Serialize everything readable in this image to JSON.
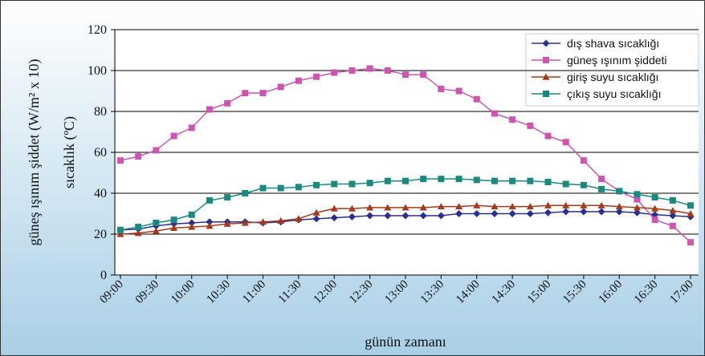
{
  "chart_data": {
    "type": "line",
    "ylabel_left": "güneş ışınım şiddet (W/m² x 10)",
    "ylabel_right": "sıcaklık (ºC)",
    "xlabel": "günün zamanı",
    "categories": [
      "09:00",
      null,
      "09:30",
      null,
      "10:00",
      null,
      "10:30",
      null,
      "11:00",
      null,
      "11:30",
      null,
      "12:00",
      null,
      "12:30",
      null,
      "13:00",
      null,
      "13:30",
      null,
      "14:00",
      null,
      "14:30",
      null,
      "15:00",
      null,
      "15:30",
      null,
      "16:00",
      null,
      "16:30",
      null,
      "17:00"
    ],
    "series": [
      {
        "name": "dış shava sıcaklığı",
        "color": "#2b2f8f",
        "marker": "diamond",
        "values": [
          22,
          22.5,
          24,
          25,
          25.5,
          26,
          26,
          26,
          25.5,
          26,
          27,
          27.5,
          28,
          28.5,
          29,
          29,
          29,
          29,
          29,
          30,
          30,
          30,
          30,
          30,
          30.5,
          31,
          31,
          31,
          31,
          30.5,
          29.5,
          29,
          28.5
        ]
      },
      {
        "name": "güneş ışınım şiddeti",
        "color": "#cc55b0",
        "marker": "square",
        "values": [
          56,
          58,
          61,
          68,
          72,
          81,
          84,
          89,
          89,
          92,
          95,
          97,
          99,
          100,
          101,
          100,
          98,
          98,
          91,
          90,
          86,
          79,
          76,
          73,
          68,
          65,
          56,
          47,
          41,
          37,
          27,
          24,
          16
        ]
      },
      {
        "name": "giriş suyu sıcaklığı",
        "color": "#a33a1c",
        "marker": "triangle",
        "values": [
          20,
          20.5,
          21.5,
          23,
          23.5,
          24,
          25,
          25.5,
          26,
          26.5,
          27.5,
          30.5,
          32.5,
          32.5,
          33,
          33,
          33,
          33,
          33.5,
          33.5,
          34,
          33.5,
          33.5,
          33.5,
          34,
          34,
          34,
          34,
          33.5,
          33,
          32.5,
          31.5,
          30
        ]
      },
      {
        "name": "çıkış suyu sıcaklığı",
        "color": "#1a8a80",
        "marker": "square",
        "values": [
          22,
          23.5,
          25.5,
          27,
          29.5,
          36.5,
          38,
          40,
          42.5,
          42.5,
          43,
          44,
          44.5,
          44.5,
          45,
          46,
          46,
          47,
          47,
          47,
          46.5,
          46,
          46,
          46,
          45.5,
          44.5,
          44,
          42,
          41,
          39.5,
          38,
          36.5,
          34
        ]
      }
    ],
    "ylim": [
      0,
      120
    ],
    "yticks": [
      0,
      20,
      40,
      60,
      80,
      100,
      120
    ],
    "grid": true,
    "legend": "top-right"
  }
}
